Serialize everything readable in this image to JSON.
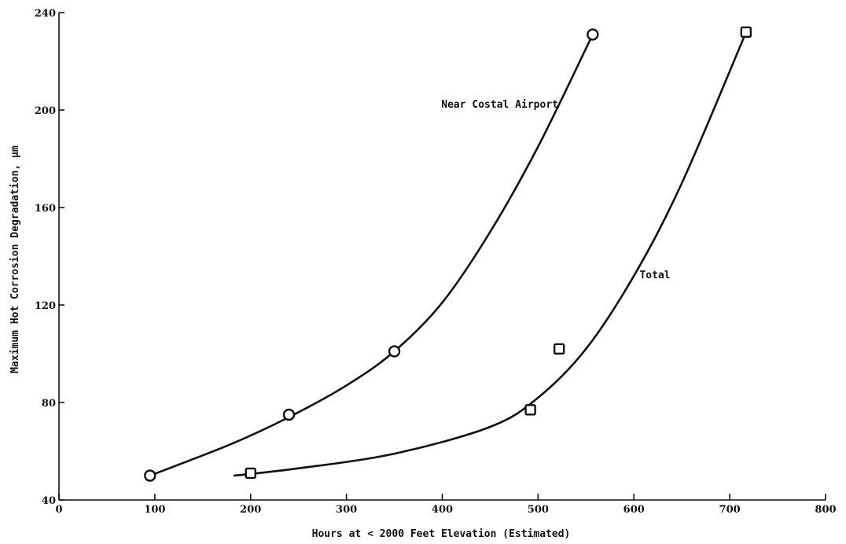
{
  "chart_data": {
    "type": "scatter",
    "xlabel": "Hours at < 2000 Feet Elevation (Estimated)",
    "ylabel": "Maximum Hot Corrosion Degradation, µm",
    "xlim": [
      0,
      800
    ],
    "ylim": [
      40,
      240
    ],
    "x_ticks": [
      "0",
      "100",
      "200",
      "300",
      "400",
      "500",
      "600",
      "700",
      "800"
    ],
    "y_ticks": [
      "40",
      "80",
      "120",
      "160",
      "200",
      "240"
    ],
    "grid": false,
    "series": [
      {
        "name": "Near Costal Airport",
        "marker": "circle",
        "points": [
          [
            95,
            50
          ],
          [
            240,
            75
          ],
          [
            350,
            101
          ],
          [
            557,
            231
          ]
        ],
        "fit_curve": [
          [
            95,
            50
          ],
          [
            180,
            63
          ],
          [
            240,
            74
          ],
          [
            300,
            87
          ],
          [
            350,
            101
          ],
          [
            400,
            121
          ],
          [
            450,
            150
          ],
          [
            500,
            185
          ],
          [
            557,
            231
          ]
        ]
      },
      {
        "name": "Total",
        "marker": "square",
        "points": [
          [
            200,
            51
          ],
          [
            492,
            77
          ],
          [
            522,
            102
          ],
          [
            717,
            232
          ]
        ],
        "fit_curve": [
          [
            183,
            50
          ],
          [
            250,
            53
          ],
          [
            350,
            59
          ],
          [
            450,
            70
          ],
          [
            500,
            82
          ],
          [
            550,
            102
          ],
          [
            600,
            132
          ],
          [
            650,
            170
          ],
          [
            715,
            230
          ]
        ]
      }
    ],
    "annotations": [
      {
        "text": "Near Costal Airport",
        "x": 460,
        "y": 201
      },
      {
        "text": "Total",
        "x": 622,
        "y": 131
      }
    ]
  }
}
